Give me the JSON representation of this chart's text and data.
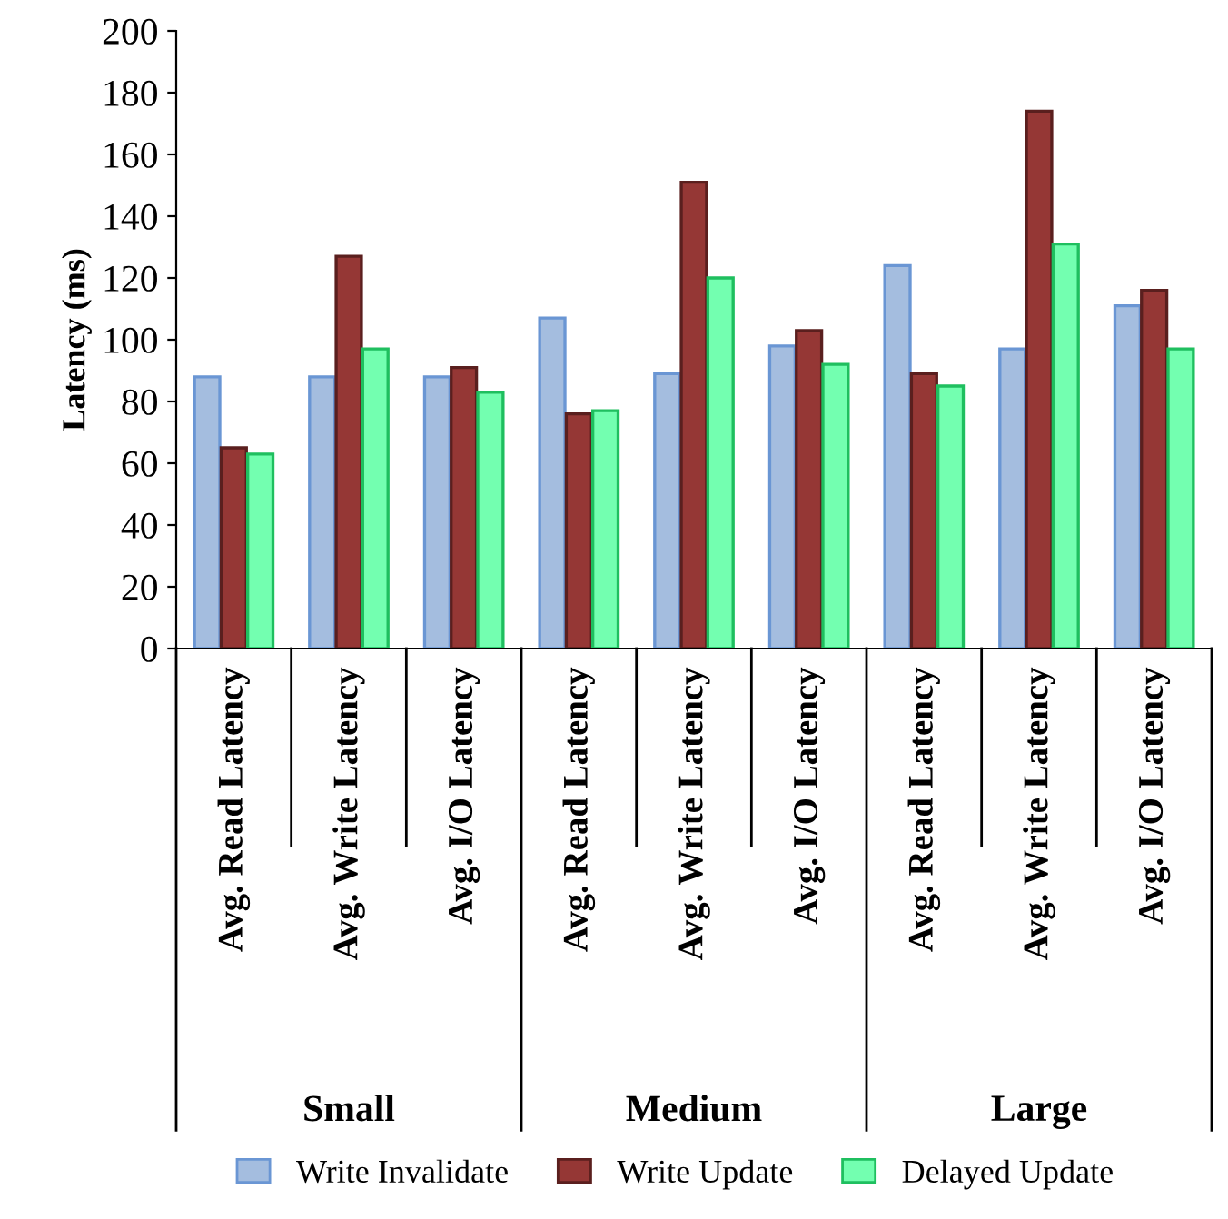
{
  "chart_data": {
    "type": "bar",
    "ylabel": "Latency (ms)",
    "categories": [
      "Avg. Read Latency",
      "Avg. Write Latency",
      "Avg. I/O Latency",
      "Avg. Read Latency",
      "Avg. Write Latency",
      "Avg. I/O Latency",
      "Avg. Read Latency",
      "Avg. Write Latency",
      "Avg. I/O Latency"
    ],
    "series": [
      {
        "name": "Write Invalidate",
        "color": "#a4bddf",
        "values": [
          88,
          88,
          88,
          107,
          89,
          98,
          124,
          97,
          111
        ]
      },
      {
        "name": "Write Update",
        "color": "#953735",
        "values": [
          65,
          127,
          91,
          76,
          151,
          103,
          89,
          174,
          116
        ]
      },
      {
        "name": "Delayed Update",
        "color": "#73ffb0",
        "values": [
          63,
          97,
          83,
          77,
          120,
          92,
          85,
          131,
          97
        ]
      }
    ],
    "annotations": [
      "Small",
      "Medium",
      "Large"
    ],
    "ylim": [
      0,
      200
    ],
    "yticks": [
      0,
      20,
      40,
      60,
      80,
      100,
      120,
      140,
      160,
      180,
      200
    ],
    "grid": false,
    "legend": "bottom"
  }
}
